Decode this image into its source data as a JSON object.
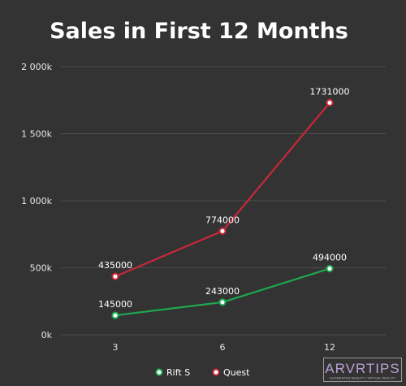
{
  "chart_data": {
    "type": "line",
    "title": "Sales in First 12 Months",
    "xlabel": "",
    "ylabel": "",
    "categories": [
      "3",
      "6",
      "12"
    ],
    "ylim": [
      0,
      2000000
    ],
    "yticks": [
      0,
      500000,
      1000000,
      1500000,
      2000000
    ],
    "ytick_labels": [
      "0k",
      "500k",
      "1 000k",
      "1 500k",
      "2 000k"
    ],
    "grid": true,
    "legend": "bottom",
    "series": [
      {
        "name": "Rift S",
        "color": "#1ea84f",
        "values": [
          145000,
          243000,
          494000
        ],
        "labels": [
          "145000",
          "243000",
          "494000"
        ]
      },
      {
        "name": "Quest",
        "color": "#c8283a",
        "values": [
          435000,
          774000,
          1731000
        ],
        "labels": [
          "435000",
          "774000",
          "1731000"
        ]
      }
    ]
  },
  "logo": {
    "text": "ARVRTIPS",
    "tagline": "AUGMENTED REALITY | VIRTUAL REALITY"
  }
}
